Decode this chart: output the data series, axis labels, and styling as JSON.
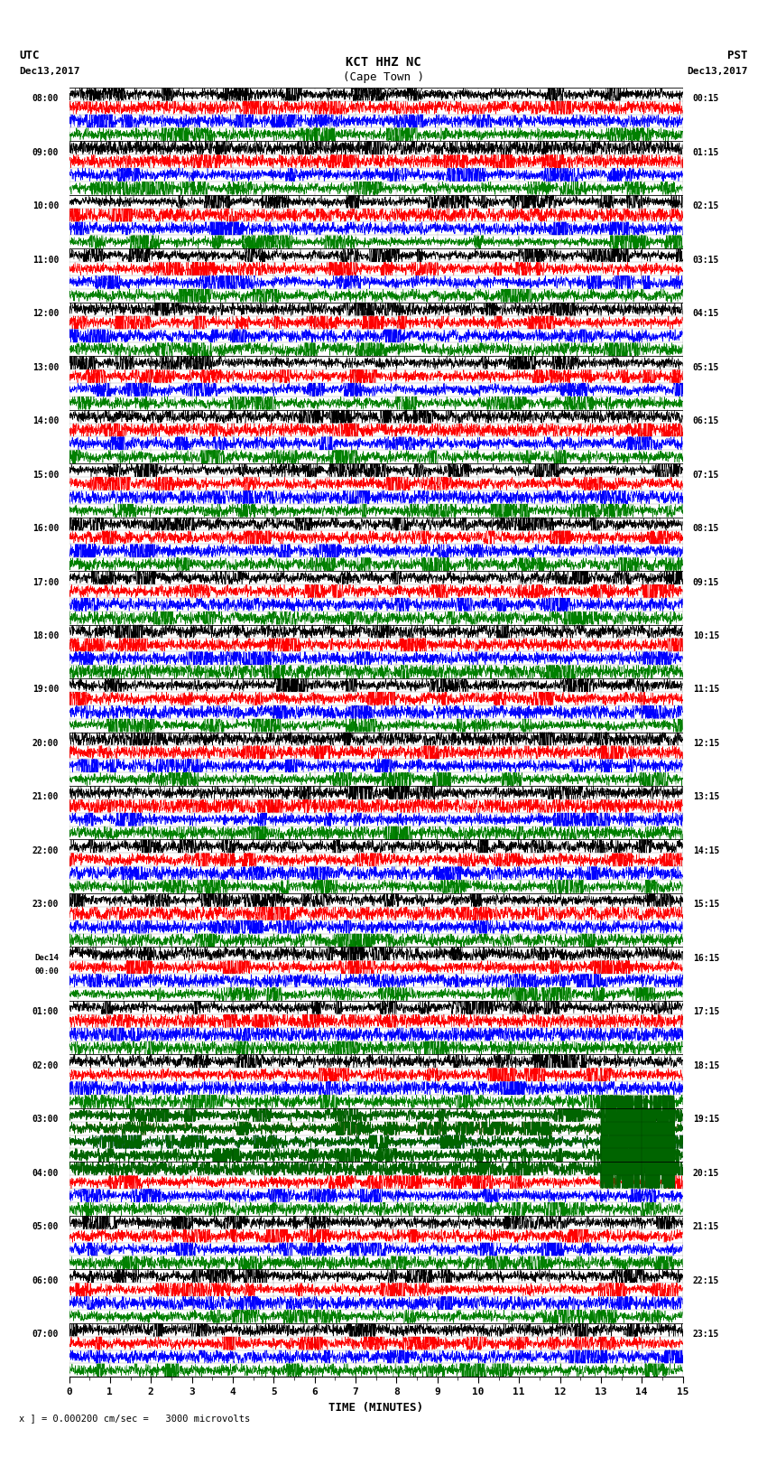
{
  "title_line1": "KCT HHZ NC",
  "title_line2": "(Cape Town )",
  "scale_label": "I = 0.000200 cm/sec",
  "left_header_line1": "UTC",
  "left_header_line2": "Dec13,2017",
  "right_header_line1": "PST",
  "right_header_line2": "Dec13,2017",
  "bottom_label": "TIME (MINUTES)",
  "bottom_note": "x ] = 0.000200 cm/sec =   3000 microvolts",
  "utc_times": [
    "08:00",
    "09:00",
    "10:00",
    "11:00",
    "12:00",
    "13:00",
    "14:00",
    "15:00",
    "16:00",
    "17:00",
    "18:00",
    "19:00",
    "20:00",
    "21:00",
    "22:00",
    "23:00",
    "Dec14\n00:00",
    "01:00",
    "02:00",
    "03:00",
    "04:00",
    "05:00",
    "06:00",
    "07:00"
  ],
  "pst_times": [
    "00:15",
    "01:15",
    "02:15",
    "03:15",
    "04:15",
    "05:15",
    "06:15",
    "07:15",
    "08:15",
    "09:15",
    "10:15",
    "11:15",
    "12:15",
    "13:15",
    "14:15",
    "15:15",
    "16:15",
    "17:15",
    "18:15",
    "19:15",
    "20:15",
    "21:15",
    "22:15",
    "23:15"
  ],
  "n_hours": 24,
  "traces_per_hour": 4,
  "n_points": 3000,
  "color_cycle": [
    "black",
    "red",
    "blue",
    "green"
  ],
  "bg_color": "white",
  "x_min": 0,
  "x_max": 15,
  "x_ticks": [
    0,
    1,
    2,
    3,
    4,
    5,
    6,
    7,
    8,
    9,
    10,
    11,
    12,
    13,
    14,
    15
  ],
  "fig_width": 8.5,
  "fig_height": 16.13,
  "dpi": 100,
  "seed": 12345,
  "lw": 0.4
}
